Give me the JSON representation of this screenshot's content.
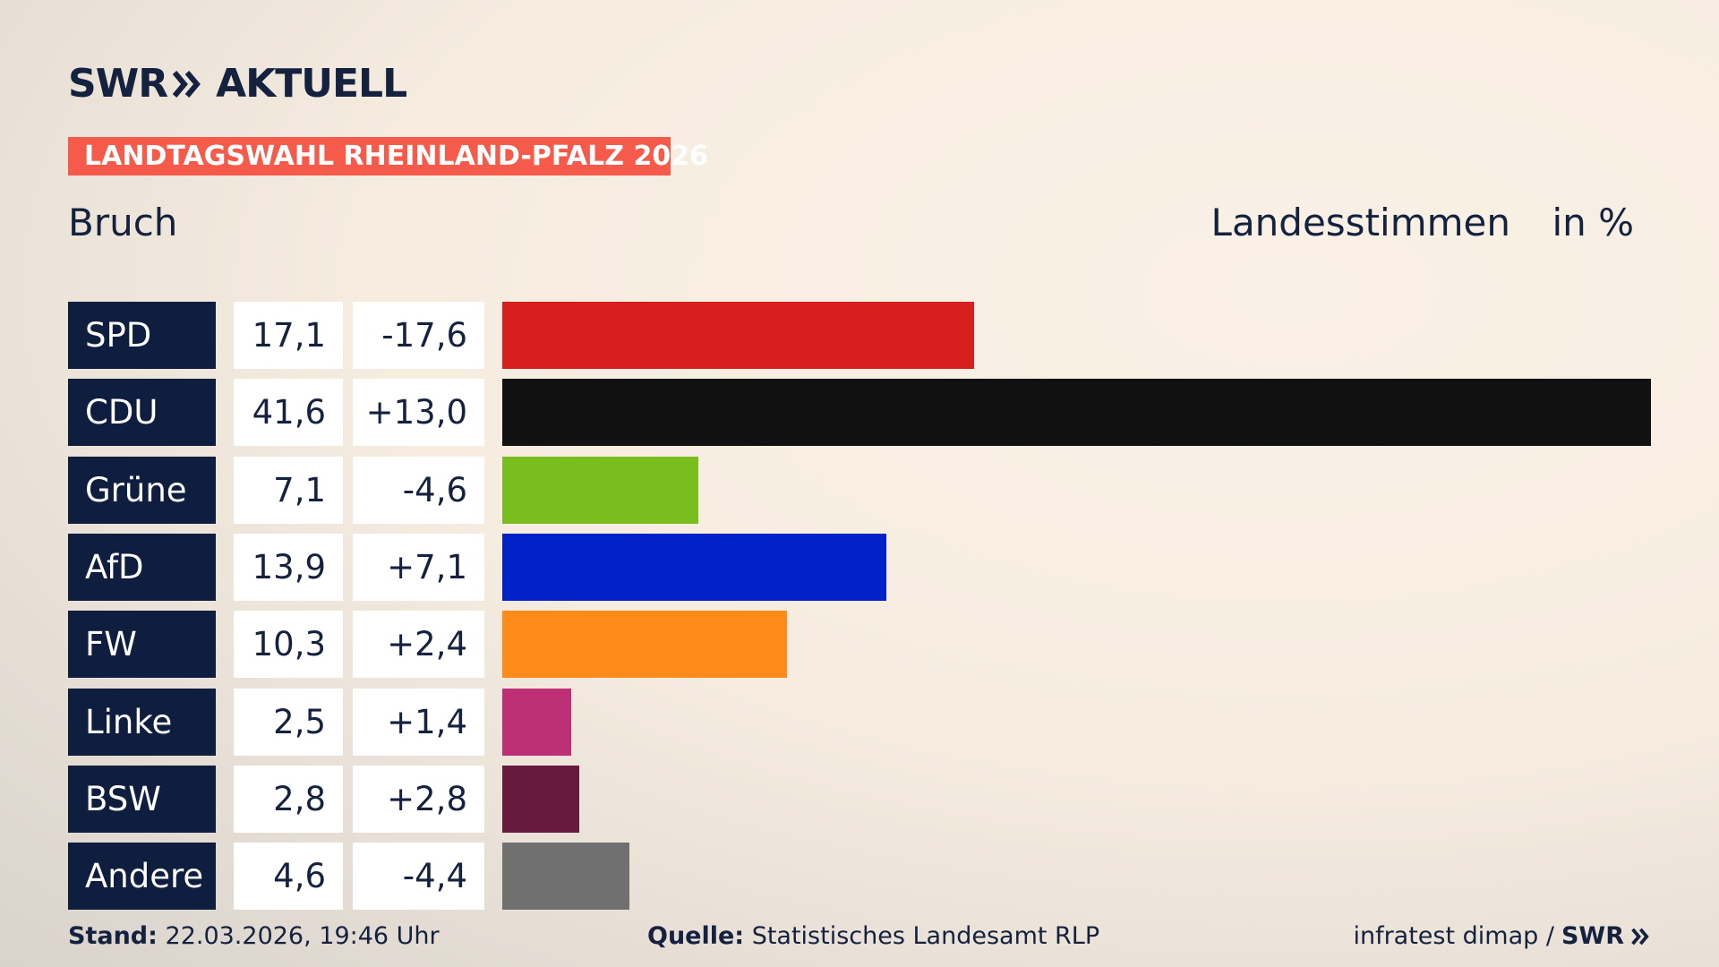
{
  "brand": {
    "name": "SWR",
    "product": "AKTUELL"
  },
  "banner": "LANDTAGSWAHL RHEINLAND-PFALZ 2026",
  "chart_data": {
    "type": "bar",
    "subtitle": "Bruch",
    "measure": "Landesstimmen",
    "unit": "in %",
    "categories": [
      "SPD",
      "CDU",
      "Grüne",
      "AfD",
      "FW",
      "Linke",
      "BSW",
      "Andere"
    ],
    "values": [
      17.1,
      41.6,
      7.1,
      13.9,
      10.3,
      2.5,
      2.8,
      4.6
    ],
    "value_labels": [
      "17,1",
      "41,6",
      "7,1",
      "13,9",
      "10,3",
      "2,5",
      "2,8",
      "4,6"
    ],
    "changes": [
      -17.6,
      13.0,
      -4.6,
      7.1,
      2.4,
      1.4,
      2.8,
      -4.4
    ],
    "change_labels": [
      "-17,6",
      "+13,0",
      "-4,6",
      "+7,1",
      "+2,4",
      "+1,4",
      "+2,8",
      "-4,4"
    ],
    "colors": [
      "#d81f20",
      "#111111",
      "#7abd1e",
      "#0022c8",
      "#ff8c1a",
      "#bd3075",
      "#661a3e",
      "#707070"
    ]
  },
  "footer": {
    "stand_label": "Stand:",
    "stand": "22.03.2026, 19:46 Uhr",
    "source_label": "Quelle:",
    "source": "Statistisches Landesamt RLP",
    "credit": "infratest dimap /",
    "credit_brand": "SWR"
  }
}
